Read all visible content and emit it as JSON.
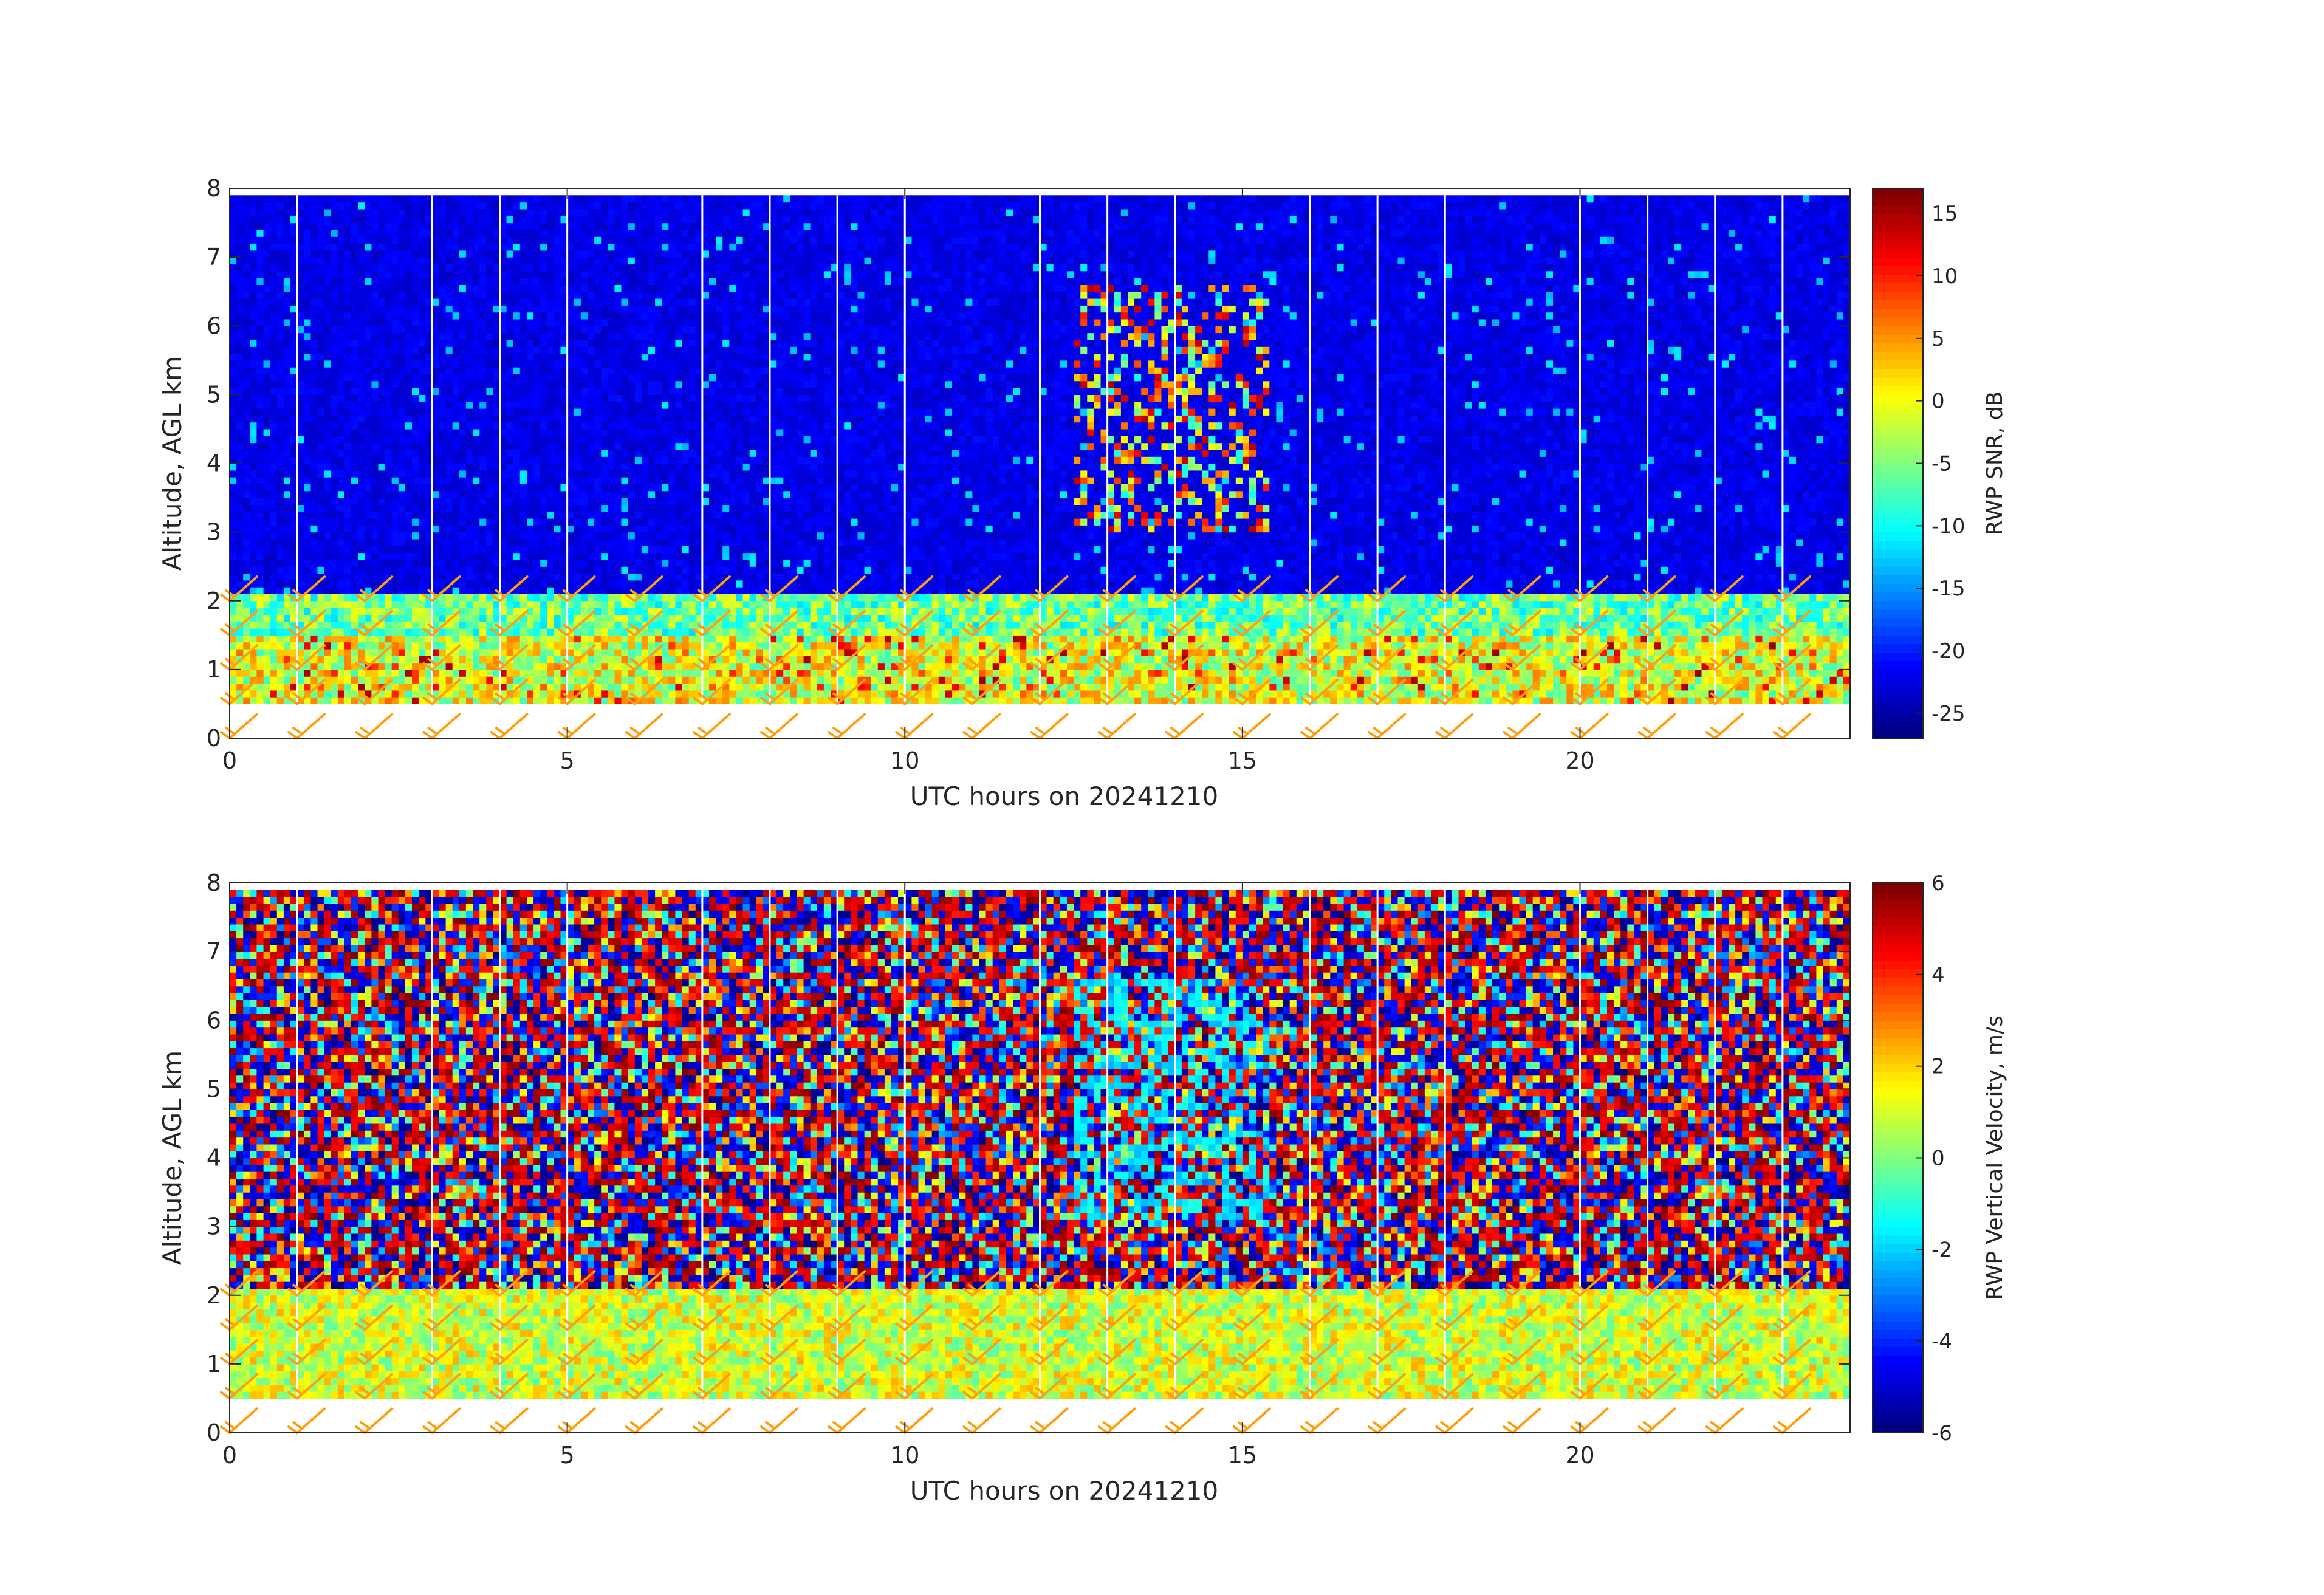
{
  "chart_data": [
    {
      "type": "heatmap",
      "title": "",
      "xlabel": "UTC hours on 20241210",
      "ylabel": "Altitude, AGL km",
      "xlim": [
        0,
        24
      ],
      "ylim": [
        0,
        8
      ],
      "xticks": [
        0,
        5,
        10,
        15,
        20
      ],
      "yticks": [
        0,
        1,
        2,
        3,
        4,
        5,
        6,
        7,
        8
      ],
      "colorbar": {
        "label": "RWP SNR, dB",
        "range": [
          -27,
          17
        ],
        "ticks": [
          15,
          10,
          5,
          0,
          -5,
          -10,
          -15,
          -20,
          -25
        ],
        "colormap": "jet"
      },
      "field_regions": [
        {
          "name": "upper troposphere background",
          "x_range": [
            0,
            24
          ],
          "y_range": [
            2,
            8
          ],
          "value": -23
        },
        {
          "name": "boundary layer",
          "x_range": [
            0,
            24
          ],
          "y_range": [
            0.5,
            1.6
          ],
          "value": -4
        },
        {
          "name": "boundary layer top",
          "x_range": [
            0,
            24
          ],
          "y_range": [
            1.5,
            2.1
          ],
          "value": -6
        },
        {
          "name": "convective plume",
          "x_range": [
            12.5,
            15.3
          ],
          "y_range": [
            3.0,
            6.5
          ],
          "value": 5
        },
        {
          "name": "no data below first gate",
          "x_range": [
            0,
            24
          ],
          "y_range": [
            0,
            0.5
          ],
          "value": null
        }
      ],
      "missing_time_columns": [
        1,
        3,
        4,
        5,
        7,
        8,
        9,
        10,
        12,
        13,
        14,
        16,
        17,
        18,
        20,
        21,
        22,
        23
      ],
      "wind_barbs": {
        "color": "#ff9f10",
        "times": [
          0,
          1,
          2,
          3,
          4,
          5,
          6,
          7,
          8,
          9,
          10,
          11,
          12,
          13,
          14,
          15,
          16,
          17,
          18,
          19,
          20,
          21,
          22,
          23
        ],
        "levels_km": [
          0.0,
          0.5,
          1.0,
          1.5,
          2.0
        ]
      }
    },
    {
      "type": "heatmap",
      "title": "",
      "xlabel": "UTC hours on 20241210",
      "ylabel": "Altitude, AGL km",
      "xlim": [
        0,
        24
      ],
      "ylim": [
        0,
        8
      ],
      "xticks": [
        0,
        5,
        10,
        15,
        20
      ],
      "yticks": [
        0,
        1,
        2,
        3,
        4,
        5,
        6,
        7,
        8
      ],
      "colorbar": {
        "label": "RWP Vertical Velocity, m/s",
        "range": [
          -6,
          6
        ],
        "ticks": [
          6,
          4,
          2,
          0,
          -2,
          -4,
          -6
        ],
        "colormap": "jet"
      },
      "field_regions": [
        {
          "name": "noise above boundary layer",
          "x_range": [
            0,
            24
          ],
          "y_range": [
            2,
            8
          ],
          "value": "random ±6"
        },
        {
          "name": "boundary layer",
          "x_range": [
            0,
            24
          ],
          "y_range": [
            0.5,
            2.1
          ],
          "value": 0.5
        },
        {
          "name": "convective plume",
          "x_range": [
            12.5,
            15.3
          ],
          "y_range": [
            3.0,
            6.5
          ],
          "value": -1.5
        },
        {
          "name": "no data below first gate",
          "x_range": [
            0,
            24
          ],
          "y_range": [
            0,
            0.5
          ],
          "value": null
        }
      ],
      "missing_time_columns": [
        1,
        3,
        4,
        5,
        7,
        8,
        9,
        10,
        12,
        13,
        14,
        16,
        17,
        18,
        20,
        21,
        22,
        23
      ],
      "wind_barbs": {
        "color": "#ff9f10",
        "times": [
          0,
          1,
          2,
          3,
          4,
          5,
          6,
          7,
          8,
          9,
          10,
          11,
          12,
          13,
          14,
          15,
          16,
          17,
          18,
          19,
          20,
          21,
          22,
          23
        ],
        "levels_km": [
          0.0,
          0.5,
          1.0,
          1.5,
          2.0
        ]
      }
    }
  ]
}
